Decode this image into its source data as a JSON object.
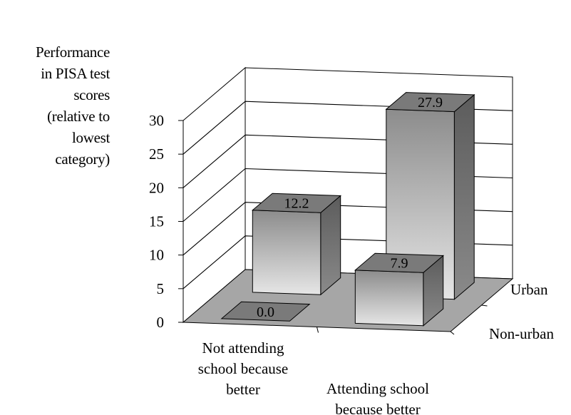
{
  "chart_data": {
    "type": "bar",
    "subtype": "3d-column",
    "ylabel_lines": [
      "Performance",
      "in PISA test",
      "scores",
      "(relative to",
      "lowest",
      "category)"
    ],
    "ylim": [
      0,
      30
    ],
    "yticks": [
      0,
      5,
      10,
      15,
      20,
      25,
      30
    ],
    "categories": [
      {
        "lines": [
          "Not attending",
          "school because",
          "better"
        ]
      },
      {
        "lines": [
          "Attending school",
          "because better"
        ]
      }
    ],
    "series": [
      {
        "name": "Non-urban",
        "values": [
          0.0,
          7.9
        ]
      },
      {
        "name": "Urban",
        "values": [
          12.2,
          27.9
        ]
      }
    ],
    "data_labels": [
      [
        "0.0",
        "7.9"
      ],
      [
        "12.2",
        "27.9"
      ]
    ],
    "grid": true,
    "colors": {
      "floor": "#a6a6a6",
      "bar_front_light": "#e6e6e6",
      "bar_front_dark": "#8c8c8c",
      "bar_side": "#6e6e6e",
      "bar_top": "#7a7a7a"
    }
  }
}
